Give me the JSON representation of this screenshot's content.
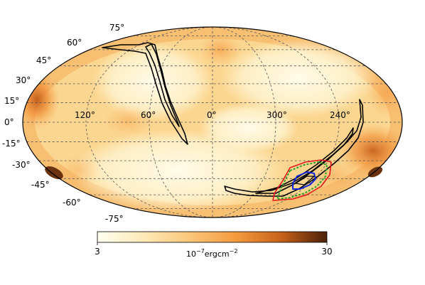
{
  "map": {
    "projection": "mollweide",
    "latitude_labels": [
      "75°",
      "60°",
      "45°",
      "30°",
      "15°",
      "0°",
      "-15°",
      "-30°",
      "-45°",
      "-60°",
      "-75°"
    ],
    "longitude_labels": [
      "120°",
      "60°",
      "0°",
      "300°",
      "240°"
    ],
    "colors": {
      "low": "#fffbe6",
      "mid": "#fcd189",
      "high": "#f08a2c",
      "max": "#5a2a0c",
      "contour": "#000000",
      "region_red": "#e8181c",
      "region_green": "#2ca02c",
      "region_blue": "#0b23e0"
    }
  },
  "colorbar": {
    "min_label": "3",
    "max_label": "30",
    "unit_label": "10",
    "unit_exponent": "−7",
    "unit_suffix": "ergcm",
    "unit_suffix_exponent": "−2",
    "scale": "log",
    "range": [
      3,
      30
    ]
  }
}
